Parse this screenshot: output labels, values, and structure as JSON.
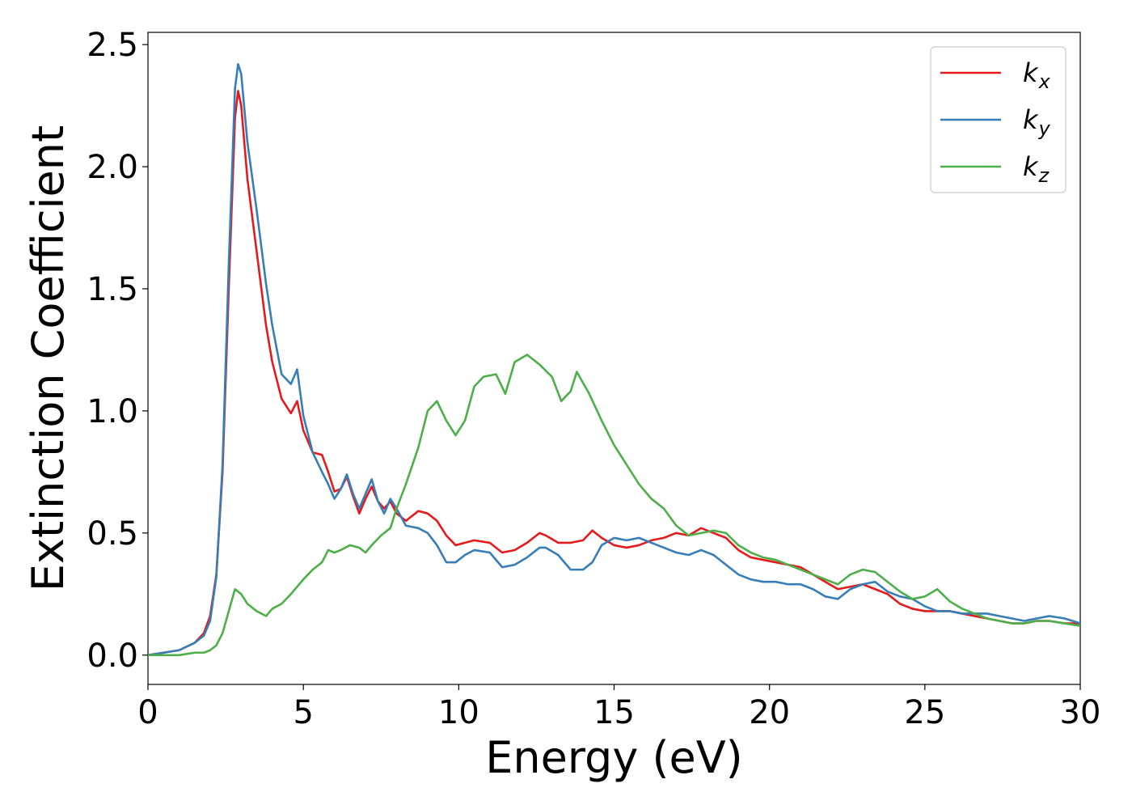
{
  "chart_data": {
    "type": "line",
    "title": "",
    "xlabel": "Energy (eV)",
    "ylabel": "Extinction Coefficient",
    "xlim": [
      0,
      30
    ],
    "ylim": [
      -0.12,
      2.55
    ],
    "xticks": [
      0,
      5,
      10,
      15,
      20,
      25,
      30
    ],
    "xtick_labels": [
      "0",
      "5",
      "10",
      "15",
      "20",
      "25",
      "30"
    ],
    "yticks": [
      0.0,
      0.5,
      1.0,
      1.5,
      2.0,
      2.5
    ],
    "ytick_labels": [
      "0.0",
      "0.5",
      "1.0",
      "1.5",
      "2.0",
      "2.5"
    ],
    "grid": false,
    "legend_position": "top-right",
    "series": [
      {
        "name": "k",
        "subscript": "x",
        "color": "#e41a1c",
        "x": [
          0,
          0.5,
          1.0,
          1.5,
          1.8,
          2.0,
          2.2,
          2.4,
          2.6,
          2.8,
          2.9,
          3.0,
          3.2,
          3.5,
          3.8,
          4.0,
          4.3,
          4.6,
          4.8,
          5.0,
          5.3,
          5.6,
          5.8,
          6.0,
          6.2,
          6.4,
          6.6,
          6.8,
          7.0,
          7.2,
          7.4,
          7.6,
          7.8,
          8.0,
          8.3,
          8.7,
          9.0,
          9.3,
          9.6,
          9.9,
          10.2,
          10.5,
          11.0,
          11.4,
          11.8,
          12.2,
          12.6,
          12.8,
          13.2,
          13.6,
          14.0,
          14.3,
          14.6,
          15.0,
          15.4,
          15.8,
          16.2,
          16.6,
          17.0,
          17.4,
          17.8,
          18.2,
          18.6,
          19.0,
          19.4,
          19.8,
          20.2,
          20.6,
          21.0,
          21.4,
          21.8,
          22.2,
          22.6,
          23.0,
          23.4,
          23.8,
          24.2,
          24.6,
          25.0,
          25.4,
          25.8,
          26.2,
          26.6,
          27.0,
          27.4,
          27.8,
          28.2,
          28.6,
          29.0,
          29.5,
          30.0
        ],
        "values": [
          0.0,
          0.01,
          0.02,
          0.05,
          0.09,
          0.16,
          0.33,
          0.75,
          1.5,
          2.2,
          2.31,
          2.25,
          1.95,
          1.65,
          1.35,
          1.2,
          1.05,
          0.99,
          1.04,
          0.92,
          0.83,
          0.82,
          0.75,
          0.67,
          0.68,
          0.73,
          0.65,
          0.58,
          0.64,
          0.69,
          0.63,
          0.6,
          0.63,
          0.58,
          0.55,
          0.59,
          0.58,
          0.55,
          0.49,
          0.45,
          0.46,
          0.47,
          0.46,
          0.42,
          0.43,
          0.46,
          0.5,
          0.49,
          0.46,
          0.46,
          0.47,
          0.51,
          0.48,
          0.45,
          0.44,
          0.45,
          0.47,
          0.48,
          0.5,
          0.49,
          0.52,
          0.5,
          0.48,
          0.43,
          0.4,
          0.39,
          0.38,
          0.37,
          0.36,
          0.33,
          0.3,
          0.27,
          0.28,
          0.29,
          0.27,
          0.25,
          0.21,
          0.19,
          0.18,
          0.18,
          0.18,
          0.17,
          0.16,
          0.15,
          0.14,
          0.13,
          0.13,
          0.14,
          0.14,
          0.13,
          0.13
        ]
      },
      {
        "name": "k",
        "subscript": "y",
        "color": "#377eb8",
        "x": [
          0,
          0.5,
          1.0,
          1.5,
          1.8,
          2.0,
          2.2,
          2.4,
          2.6,
          2.8,
          2.9,
          3.0,
          3.2,
          3.5,
          3.8,
          4.0,
          4.3,
          4.6,
          4.8,
          5.0,
          5.3,
          5.6,
          5.8,
          6.0,
          6.2,
          6.4,
          6.6,
          6.8,
          7.0,
          7.2,
          7.4,
          7.6,
          7.8,
          8.0,
          8.3,
          8.7,
          9.0,
          9.3,
          9.6,
          9.9,
          10.2,
          10.5,
          11.0,
          11.4,
          11.8,
          12.2,
          12.6,
          12.8,
          13.2,
          13.6,
          14.0,
          14.3,
          14.6,
          15.0,
          15.4,
          15.8,
          16.2,
          16.6,
          17.0,
          17.4,
          17.8,
          18.2,
          18.6,
          19.0,
          19.4,
          19.8,
          20.2,
          20.6,
          21.0,
          21.4,
          21.8,
          22.2,
          22.6,
          23.0,
          23.4,
          23.8,
          24.2,
          24.6,
          25.0,
          25.4,
          25.8,
          26.2,
          26.6,
          27.0,
          27.4,
          27.8,
          28.2,
          28.6,
          29.0,
          29.5,
          30.0
        ],
        "values": [
          0.0,
          0.01,
          0.02,
          0.05,
          0.08,
          0.14,
          0.32,
          0.78,
          1.6,
          2.32,
          2.42,
          2.38,
          2.1,
          1.82,
          1.52,
          1.35,
          1.15,
          1.11,
          1.17,
          0.98,
          0.83,
          0.75,
          0.7,
          0.64,
          0.68,
          0.74,
          0.66,
          0.6,
          0.66,
          0.72,
          0.63,
          0.58,
          0.64,
          0.6,
          0.53,
          0.52,
          0.5,
          0.45,
          0.38,
          0.38,
          0.41,
          0.43,
          0.42,
          0.36,
          0.37,
          0.4,
          0.44,
          0.44,
          0.41,
          0.35,
          0.35,
          0.38,
          0.45,
          0.48,
          0.47,
          0.48,
          0.46,
          0.44,
          0.42,
          0.41,
          0.43,
          0.41,
          0.37,
          0.33,
          0.31,
          0.3,
          0.3,
          0.29,
          0.29,
          0.27,
          0.24,
          0.23,
          0.27,
          0.29,
          0.3,
          0.26,
          0.24,
          0.23,
          0.2,
          0.18,
          0.18,
          0.17,
          0.17,
          0.17,
          0.16,
          0.15,
          0.14,
          0.15,
          0.16,
          0.15,
          0.13
        ]
      },
      {
        "name": "k",
        "subscript": "z",
        "color": "#4daf4a",
        "x": [
          0,
          0.5,
          1.0,
          1.5,
          1.8,
          2.0,
          2.2,
          2.4,
          2.6,
          2.8,
          3.0,
          3.2,
          3.5,
          3.8,
          4.0,
          4.3,
          4.6,
          5.0,
          5.3,
          5.6,
          5.8,
          6.0,
          6.2,
          6.5,
          6.8,
          7.0,
          7.2,
          7.5,
          7.8,
          8.0,
          8.3,
          8.7,
          9.0,
          9.3,
          9.6,
          9.9,
          10.2,
          10.5,
          10.8,
          11.2,
          11.5,
          11.8,
          12.2,
          12.6,
          13.0,
          13.3,
          13.6,
          13.8,
          14.2,
          14.6,
          15.0,
          15.4,
          15.8,
          16.2,
          16.6,
          17.0,
          17.4,
          17.8,
          18.2,
          18.6,
          19.0,
          19.4,
          19.8,
          20.2,
          20.6,
          21.0,
          21.4,
          21.8,
          22.2,
          22.6,
          23.0,
          23.4,
          23.8,
          24.2,
          24.6,
          25.0,
          25.4,
          25.8,
          26.2,
          26.6,
          27.0,
          27.4,
          27.8,
          28.2,
          28.6,
          29.0,
          29.5,
          30.0
        ],
        "values": [
          0.0,
          0.0,
          0.0,
          0.01,
          0.01,
          0.02,
          0.04,
          0.09,
          0.18,
          0.27,
          0.25,
          0.21,
          0.18,
          0.16,
          0.19,
          0.21,
          0.25,
          0.31,
          0.35,
          0.38,
          0.43,
          0.42,
          0.43,
          0.45,
          0.44,
          0.42,
          0.45,
          0.49,
          0.52,
          0.6,
          0.7,
          0.85,
          1.0,
          1.04,
          0.96,
          0.9,
          0.96,
          1.1,
          1.14,
          1.15,
          1.07,
          1.2,
          1.23,
          1.19,
          1.14,
          1.04,
          1.08,
          1.16,
          1.07,
          0.96,
          0.86,
          0.78,
          0.7,
          0.64,
          0.6,
          0.53,
          0.49,
          0.5,
          0.51,
          0.5,
          0.45,
          0.42,
          0.4,
          0.39,
          0.37,
          0.35,
          0.33,
          0.31,
          0.29,
          0.33,
          0.35,
          0.34,
          0.3,
          0.26,
          0.23,
          0.24,
          0.27,
          0.22,
          0.19,
          0.17,
          0.15,
          0.14,
          0.13,
          0.13,
          0.14,
          0.14,
          0.13,
          0.12
        ]
      }
    ]
  }
}
